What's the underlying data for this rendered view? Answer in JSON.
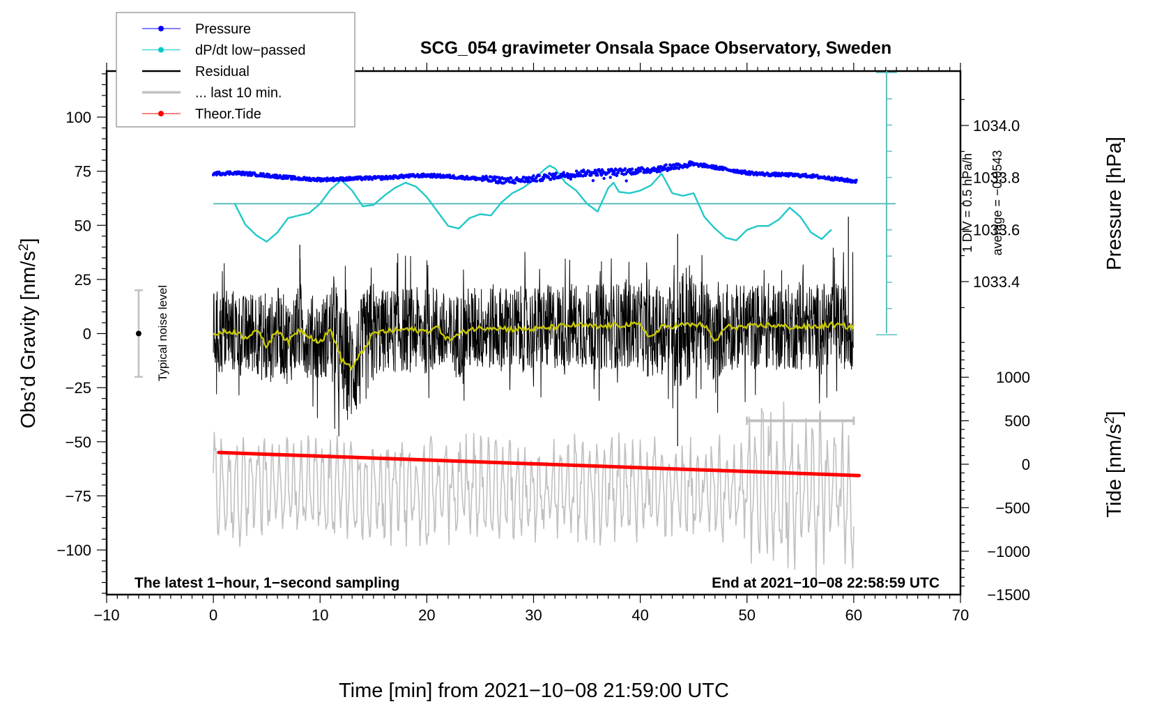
{
  "chart_data": {
    "type": "line",
    "title": "SCG_054 gravimeter Onsala Space Observatory, Sweden",
    "xlabel": "Time [min] from 2021−10−08 21:59:00 UTC",
    "ylabel_left": "Obs’d Gravity [nm/s²]",
    "ylabel_right_top": "Pressure [hPa]",
    "ylabel_right_bottom": "Tide [nm/s²]",
    "xlim": [
      -10,
      70
    ],
    "ylim_left": [
      -120,
      120
    ],
    "x_ticks": [
      -10,
      0,
      10,
      20,
      30,
      40,
      50,
      60,
      70
    ],
    "x_tick_labels": [
      "−10",
      "0",
      "10",
      "20",
      "30",
      "40",
      "50",
      "60",
      "70"
    ],
    "y_left_ticks": [
      100,
      75,
      50,
      25,
      0,
      -25,
      -50,
      -75,
      -100
    ],
    "y_left_tick_labels": [
      "100",
      "75",
      "50",
      "25",
      "0",
      "−25",
      "−50",
      "−75",
      "−100"
    ],
    "pressure_axis": {
      "ticks": [
        1034.0,
        1033.8,
        1033.6,
        1033.4
      ],
      "tick_labels": [
        "1034.0",
        "1033.8",
        "1033.6",
        "1033.4"
      ]
    },
    "tide_axis": {
      "ticks": [
        1000,
        500,
        0,
        -500,
        -1000,
        -1500
      ],
      "tick_labels": [
        "1000",
        "500",
        "0",
        "−500",
        "−1000",
        "−1500"
      ]
    },
    "dpdt_axis": {
      "label": "1 DIV = 0.5 hPa/h",
      "average_label": "average = −0.0543",
      "divisions_above_zero": 5,
      "divisions_below_zero": 5
    },
    "annotations": {
      "left_note": "The latest 1−hour, 1−second sampling",
      "right_note": "End at 2021−10−08 22:58:59 UTC",
      "noise_label": "Typical noise level",
      "noise_level": {
        "x": -7,
        "center": 0,
        "half_range": 20
      },
      "last_10min_bar": {
        "x_start": 50,
        "x_end": 60,
        "y_tide": 500
      }
    },
    "legend": {
      "placement": "top-left",
      "entries": [
        {
          "label": "Pressure",
          "color": "#0000ff",
          "marker": "dot"
        },
        {
          "label": "dP/dt low−passed",
          "color": "#00c8c8",
          "marker": "dot"
        },
        {
          "label": "Residual",
          "color": "#000000",
          "marker": "none"
        },
        {
          "label": "... last 10 min.",
          "color": "#c0c0c0",
          "marker": "none"
        },
        {
          "label": "Theor.Tide",
          "color": "#ff0000",
          "marker": "dot"
        }
      ]
    },
    "series": [
      {
        "name": "Pressure",
        "axis": "pressure",
        "color": "#0000ff",
        "x": [
          0,
          2,
          4,
          6,
          8,
          10,
          12,
          14,
          16,
          18,
          20,
          22,
          24,
          26,
          28,
          30,
          32,
          34,
          36,
          38,
          40,
          42,
          44,
          45,
          46,
          48,
          50,
          52,
          54,
          56,
          58,
          60
        ],
        "values": [
          1033.815,
          1033.818,
          1033.812,
          1033.804,
          1033.796,
          1033.792,
          1033.794,
          1033.797,
          1033.799,
          1033.805,
          1033.808,
          1033.804,
          1033.798,
          1033.792,
          1033.788,
          1033.795,
          1033.806,
          1033.815,
          1033.82,
          1033.822,
          1033.826,
          1033.835,
          1033.848,
          1033.85,
          1033.846,
          1033.832,
          1033.818,
          1033.812,
          1033.81,
          1033.806,
          1033.796,
          1033.786
        ]
      },
      {
        "name": "dP/dt low−passed",
        "axis": "dpdt_divisions",
        "color": "#20c8c8",
        "zero_line_at_gravity": 60,
        "x": [
          2,
          3,
          4,
          5,
          6,
          7,
          8,
          9,
          10,
          11,
          12,
          13,
          14,
          15,
          16,
          17,
          18,
          19,
          20,
          21,
          22,
          23,
          24,
          25,
          26,
          27,
          28,
          29,
          30,
          31,
          31.5,
          32,
          33,
          34,
          35,
          36,
          37,
          37.5,
          38,
          39,
          40,
          41,
          42,
          43,
          44,
          45,
          46,
          47,
          48,
          49,
          50,
          51,
          52,
          53,
          54,
          55,
          56,
          57,
          58
        ],
        "values": [
          0.0,
          -0.8,
          -1.2,
          -1.45,
          -1.1,
          -0.55,
          -0.45,
          -0.35,
          0.0,
          0.55,
          0.9,
          0.5,
          -0.1,
          -0.05,
          0.3,
          0.6,
          0.8,
          0.65,
          0.25,
          -0.3,
          -0.85,
          -0.95,
          -0.55,
          -0.4,
          -0.45,
          0.05,
          0.4,
          0.6,
          0.9,
          1.3,
          1.45,
          1.35,
          0.8,
          0.5,
          0.0,
          -0.3,
          0.6,
          0.8,
          0.45,
          0.4,
          0.5,
          0.7,
          1.15,
          0.4,
          0.3,
          0.4,
          -0.5,
          -0.95,
          -1.3,
          -1.4,
          -1.0,
          -0.85,
          -0.85,
          -0.6,
          -0.15,
          -0.5,
          -1.1,
          -1.35,
          -0.95
        ]
      },
      {
        "name": "Residual",
        "axis": "gravity",
        "color": "#000000",
        "x_range": [
          0,
          60
        ],
        "sampling_s": 1,
        "typical_amplitude": 20,
        "extremes": [
          {
            "x": 8.1,
            "value": 41
          },
          {
            "x": 43.5,
            "value": 46
          },
          {
            "x": 43.5,
            "value": -52
          },
          {
            "x": 59.5,
            "value": 54
          }
        ]
      },
      {
        "name": "Residual smoothed",
        "axis": "gravity",
        "color": "#c8c800",
        "x": [
          0,
          2,
          3,
          4,
          5,
          6,
          7,
          8,
          9,
          10,
          11,
          12,
          13,
          14,
          15,
          16,
          18,
          20,
          21,
          22,
          24,
          26,
          28,
          30,
          32,
          34,
          36,
          38,
          40,
          41,
          42,
          44,
          46,
          47,
          48,
          50,
          52,
          54,
          56,
          58,
          60
        ],
        "values": [
          0,
          1,
          -2,
          2,
          -6,
          2,
          -4,
          2,
          -1,
          -4,
          2,
          -12,
          -16,
          -8,
          0,
          1,
          2,
          1,
          3,
          -3,
          2,
          3,
          2,
          2,
          3,
          4,
          3,
          4,
          4,
          -2,
          3,
          4,
          4,
          -4,
          3,
          3,
          4,
          3,
          3,
          4,
          3
        ]
      },
      {
        "name": "... last 10 min.",
        "axis": "gravity",
        "color": "#c0c0c0",
        "x_range": [
          0,
          60
        ],
        "center": -72,
        "typical_amplitude": 20,
        "extremes": [
          {
            "x": 15.5,
            "value": -108
          },
          {
            "x": 56.5,
            "value": -45
          }
        ]
      },
      {
        "name": "Theor.Tide",
        "axis": "tide",
        "color": "#ff0000",
        "x": [
          0.5,
          60.5
        ],
        "values": [
          135,
          -130
        ]
      }
    ]
  }
}
